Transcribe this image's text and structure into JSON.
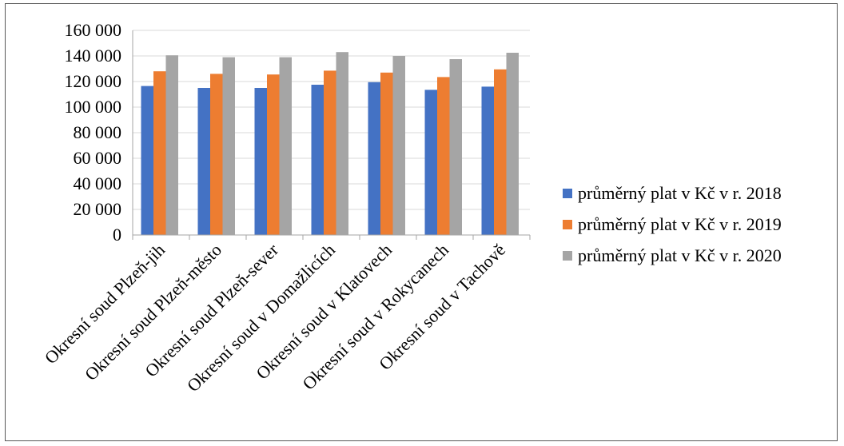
{
  "chart_data": {
    "type": "bar",
    "categories": [
      "Okresní soud Plzeň-jih",
      "Okresní soud Plzeň-město",
      "Okresní soud Plzeň-sever",
      "Okresní soud v Domažlicích",
      "Okresní soud v Klatovech",
      "Okresní soud v Rokycanech",
      "Okresní soud v Tachově"
    ],
    "series": [
      {
        "name": "průměrný plat v Kč v r. 2018",
        "color": "#4472c4",
        "values": [
          116500,
          115000,
          115000,
          117500,
          119500,
          113500,
          116000
        ]
      },
      {
        "name": "průměrný plat v Kč v r. 2019",
        "color": "#ed7d31",
        "values": [
          128000,
          126000,
          125500,
          128500,
          127000,
          123500,
          129500
        ]
      },
      {
        "name": "průměrný plat v Kč v r. 2020",
        "color": "#a5a5a5",
        "values": [
          140500,
          139000,
          139000,
          143000,
          140000,
          137500,
          142500
        ]
      }
    ],
    "yticks": [
      "0",
      "20 000",
      "40 000",
      "60 000",
      "80 000",
      "100 000",
      "120 000",
      "140 000",
      "160 000"
    ],
    "ylim": [
      0,
      160000
    ],
    "grid": true,
    "legend_position": "right"
  }
}
